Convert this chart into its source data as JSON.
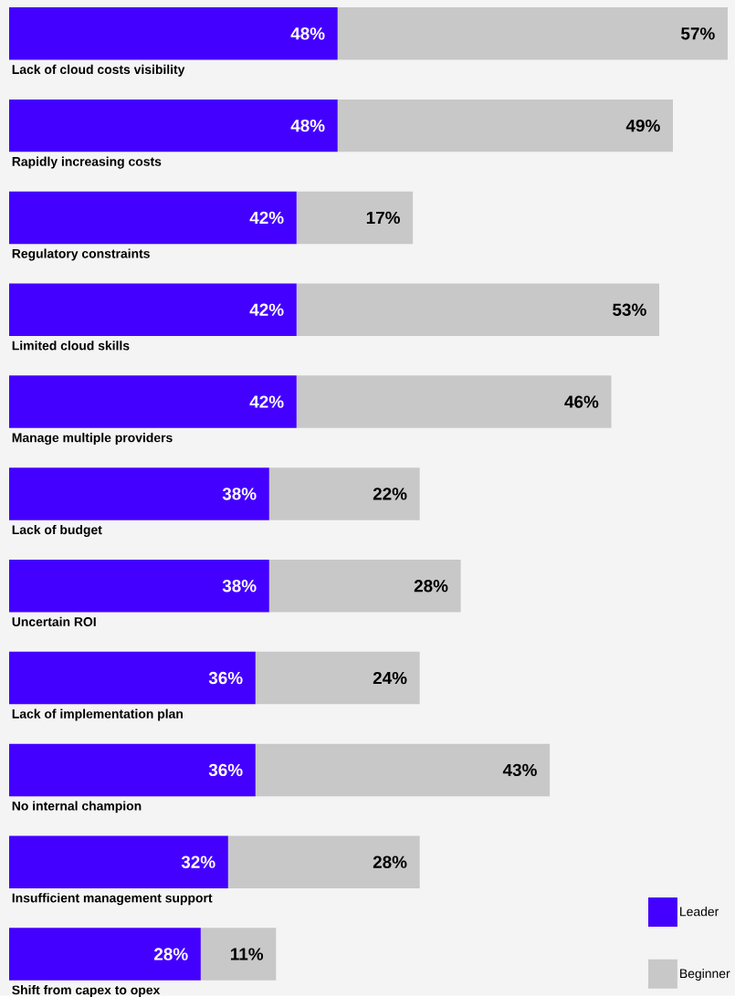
{
  "chart_data": {
    "type": "bar",
    "orientation": "horizontal",
    "stacked": true,
    "legend": "bottom right",
    "categories": [
      "Lack of cloud costs visibility",
      "Rapidly increasing costs",
      "Regulatory constraints",
      "Limited cloud skills",
      "Manage multiple providers",
      "Lack of budget",
      "Uncertain ROI",
      "Lack of implementation plan",
      "No internal champion",
      "Insufficient management support",
      "Shift from capex to opex"
    ],
    "series": [
      {
        "name": "Leader",
        "color": "#4400ff",
        "values": [
          48,
          48,
          42,
          42,
          42,
          38,
          38,
          36,
          36,
          32,
          28
        ],
        "value_labels": [
          "48%",
          "48%",
          "42%",
          "42%",
          "42%",
          "38%",
          "38%",
          "36%",
          "36%",
          "32%",
          "28%"
        ]
      },
      {
        "name": "Beginner",
        "color": "#c8c8c8",
        "values": [
          57,
          49,
          17,
          53,
          46,
          22,
          28,
          24,
          43,
          28,
          11
        ],
        "value_labels": [
          "57%",
          "49%",
          "17%",
          "53%",
          "46%",
          "22%",
          "28%",
          "24%",
          "43%",
          "28%",
          "11%"
        ]
      }
    ]
  }
}
